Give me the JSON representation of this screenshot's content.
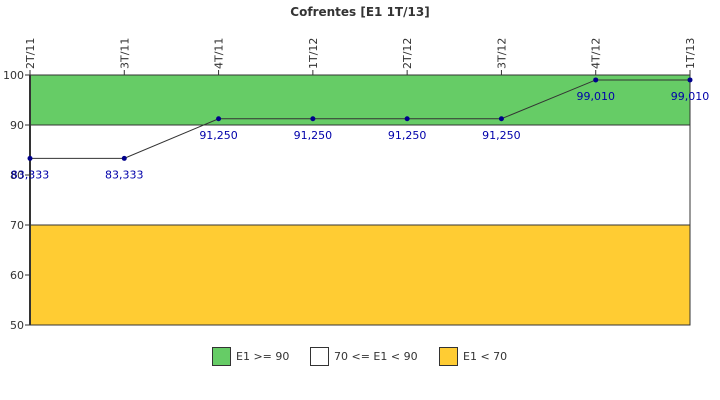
{
  "chart_data": {
    "type": "line",
    "title": "Cofrentes [E1 1T/13]",
    "categories": [
      "2T/11",
      "3T/11",
      "4T/11",
      "1T/12",
      "2T/12",
      "3T/12",
      "4T/12",
      "1T/13"
    ],
    "values": [
      83.333,
      83.333,
      91.25,
      91.25,
      91.25,
      91.25,
      99.01,
      99.01
    ],
    "value_labels": [
      "83,333",
      "83,333",
      "91,250",
      "91,250",
      "91,250",
      "91,250",
      "99,010",
      "99,010"
    ],
    "ylim": [
      50,
      100
    ],
    "yticks": [
      50,
      60,
      70,
      80,
      90,
      100
    ],
    "ytick_labels": [
      "50",
      "60",
      "70",
      "80",
      "90",
      "100"
    ],
    "xlabel": "",
    "ylabel": "",
    "grid": false,
    "legend_position": "bottom",
    "line_color": "#333333",
    "marker_color": "#00008b",
    "label_color": "#0000aa",
    "bands": [
      {
        "from": 90,
        "to": 100,
        "color": "#66cc66",
        "label": "E1 >= 90"
      },
      {
        "from": 70,
        "to": 90,
        "color": "#ffffff",
        "label": "70 <= E1 < 90"
      },
      {
        "from": 50,
        "to": 70,
        "color": "#ffcc33",
        "label": "E1 < 70"
      }
    ]
  }
}
